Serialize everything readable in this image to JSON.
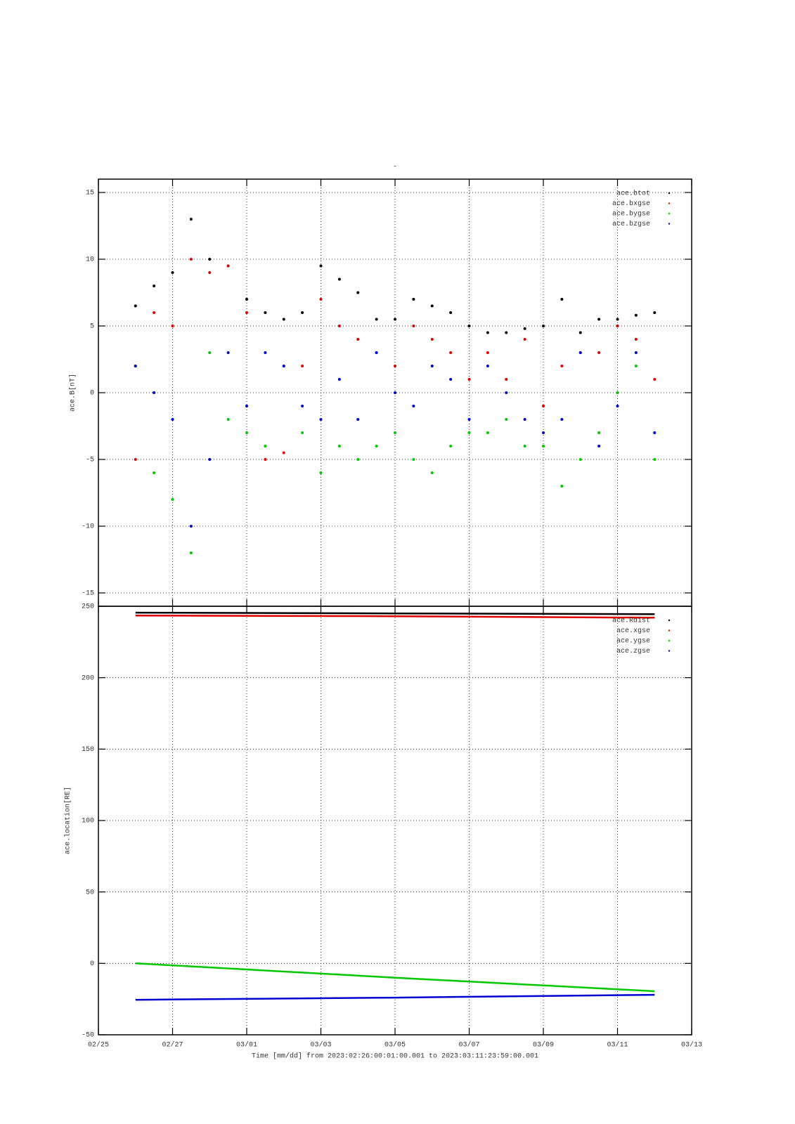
{
  "chart_data": [
    {
      "type": "scatter",
      "title": "-",
      "y_label": "ace.B[nT]",
      "x": [
        1,
        1.5,
        2,
        2.5,
        3,
        3.5,
        4,
        4.5,
        5,
        5.5,
        6,
        6.5,
        7,
        7.5,
        8,
        8.5,
        9,
        9.5,
        10,
        10.5,
        11,
        11.5,
        12,
        12.5,
        13,
        13.5,
        14,
        14.5,
        15
      ],
      "series": [
        {
          "name": "ace.btot",
          "color": "#000000",
          "values": [
            6.5,
            8,
            9,
            13,
            10,
            9.5,
            7,
            6,
            5.5,
            6,
            9.5,
            8.5,
            7.5,
            5.5,
            5.5,
            7,
            6.5,
            6,
            5,
            4.5,
            4.5,
            4.8,
            5,
            7,
            4.5,
            5.5,
            5.5,
            5.8,
            6
          ]
        },
        {
          "name": "ace.bxgse",
          "color": "#e00000",
          "values": [
            -5,
            6,
            5,
            10,
            9,
            9.5,
            6,
            -5,
            -4.5,
            2,
            7,
            5,
            4,
            3,
            2,
            5,
            4,
            3,
            1,
            3,
            1,
            4,
            -1,
            2,
            3,
            3,
            5,
            4,
            1
          ]
        },
        {
          "name": "ace.bygse",
          "color": "#00c800",
          "values": [
            2,
            -6,
            -8,
            -12,
            3,
            -2,
            -3,
            -4,
            2,
            -3,
            -6,
            -4,
            -5,
            -4,
            -3,
            -5,
            -6,
            -4,
            -3,
            -3,
            -2,
            -4,
            -4,
            -7,
            -5,
            -3,
            0,
            2,
            -5
          ]
        },
        {
          "name": "ace.bzgse",
          "color": "#0000d0",
          "values": [
            2,
            0,
            -2,
            -10,
            -5,
            3,
            -1,
            3,
            2,
            -1,
            -2,
            1,
            -2,
            3,
            0,
            -1,
            2,
            1,
            -2,
            2,
            0,
            -2,
            -3,
            -2,
            3,
            -4,
            -1,
            3,
            -3
          ]
        }
      ],
      "xlim": [
        0,
        16
      ],
      "xticks": [
        0,
        2,
        4,
        6,
        8,
        10,
        12,
        14,
        16
      ],
      "ylim": [
        -16,
        16
      ],
      "yticks": [
        -15,
        -10,
        -5,
        0,
        5,
        10,
        15
      ],
      "grid": true,
      "legend": "upper right"
    },
    {
      "type": "line",
      "y_label": "ace.location[RE]",
      "x_label": "Time [mm/dd]  from 2023:02:26:00:01:00.001  to  2023:03:11:23:59:00.001",
      "x": [
        1,
        8,
        15
      ],
      "series": [
        {
          "name": "ace.Rdist",
          "color": "#000000",
          "values": [
            245.5,
            245,
            244.5
          ]
        },
        {
          "name": "ace.xgse",
          "color": "#e00000",
          "values": [
            243.5,
            243,
            242
          ]
        },
        {
          "name": "ace.ygse",
          "color": "#00c800",
          "values": [
            0,
            -10,
            -19.5
          ]
        },
        {
          "name": "ace.zgse",
          "color": "#0000d0",
          "values": [
            -25.5,
            -24,
            -22
          ]
        }
      ],
      "xlim": [
        0,
        16
      ],
      "xticks": [
        {
          "value": 0,
          "label": "02/25"
        },
        {
          "value": 2,
          "label": "02/27"
        },
        {
          "value": 4,
          "label": "03/01"
        },
        {
          "value": 6,
          "label": "03/03"
        },
        {
          "value": 8,
          "label": "03/05"
        },
        {
          "value": 10,
          "label": "03/07"
        },
        {
          "value": 12,
          "label": "03/09"
        },
        {
          "value": 14,
          "label": "03/11"
        },
        {
          "value": 16,
          "label": "03/13"
        }
      ],
      "ylim": [
        -50,
        250
      ],
      "yticks": [
        -50,
        0,
        50,
        100,
        150,
        200,
        250
      ],
      "grid": true,
      "legend": "upper right"
    }
  ]
}
